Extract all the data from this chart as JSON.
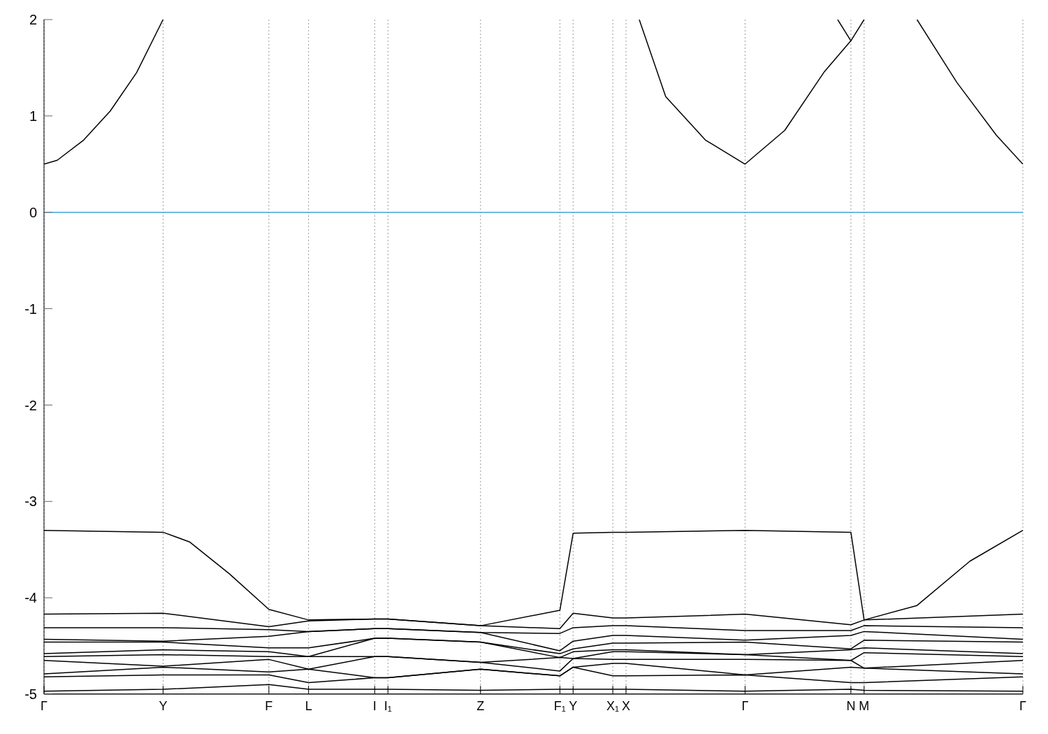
{
  "chart_data": {
    "type": "line",
    "ylim": [
      -5,
      2
    ],
    "categories": [
      "Γ",
      null,
      null,
      null,
      null,
      null,
      null,
      null,
      null,
      "Y",
      null,
      null,
      null,
      null,
      null,
      null,
      null,
      "F",
      null,
      null,
      "L",
      null,
      null,
      null,
      null,
      "I",
      "I₁",
      null,
      null,
      null,
      null,
      null,
      null,
      "Z",
      null,
      null,
      null,
      null,
      null,
      "F₁",
      "Y",
      null,
      null,
      "X₁",
      "X",
      null,
      null,
      null,
      null,
      null,
      null,
      null,
      null,
      "Γ",
      null,
      null,
      null,
      null,
      null,
      null,
      null,
      "N",
      "M",
      null,
      null,
      null,
      null,
      null,
      null,
      null,
      null,
      null,
      null,
      null,
      "Γ"
    ],
    "yticks": [
      -5,
      -4,
      -3,
      -2,
      -1,
      0,
      1,
      2
    ],
    "grid": "x",
    "ref_lines": [
      {
        "axis": "y",
        "value": 0,
        "color": "#3fa9de"
      }
    ],
    "series": [
      {
        "color": "#000000",
        "values": [
          0.5,
          0.54,
          null,
          0.75,
          null,
          1.05,
          null,
          1.45,
          null,
          2.0,
          null,
          null,
          null,
          null,
          null,
          null,
          null,
          null,
          null,
          null,
          null,
          null,
          null,
          null,
          null,
          null,
          null,
          null,
          null,
          null,
          null,
          null,
          null,
          null,
          null,
          null,
          null,
          null,
          null,
          null,
          null,
          null,
          null,
          null,
          null,
          null,
          null,
          null,
          null,
          null,
          null,
          null,
          null,
          null,
          null,
          null,
          null,
          null,
          null,
          null,
          null,
          null,
          null,
          null,
          null,
          null,
          null,
          null,
          null,
          null,
          null,
          null,
          null,
          null,
          null
        ]
      },
      {
        "color": "#000000",
        "values": [
          null,
          null,
          null,
          null,
          null,
          null,
          null,
          null,
          null,
          null,
          null,
          null,
          null,
          null,
          null,
          null,
          null,
          null,
          null,
          null,
          null,
          null,
          null,
          null,
          null,
          null,
          null,
          null,
          null,
          null,
          null,
          null,
          null,
          null,
          null,
          null,
          null,
          null,
          null,
          null,
          null,
          null,
          null,
          null,
          null,
          2.0,
          null,
          1.2,
          null,
          null,
          0.75,
          null,
          null,
          0.5,
          null,
          null,
          0.85,
          null,
          null,
          1.46,
          null,
          1.78,
          null,
          null,
          null,
          null,
          null,
          null,
          null,
          null,
          null,
          null,
          null,
          null,
          null
        ]
      },
      {
        "color": "#000000",
        "values": [
          null,
          null,
          null,
          null,
          null,
          null,
          null,
          null,
          null,
          null,
          null,
          null,
          null,
          null,
          null,
          null,
          null,
          null,
          null,
          null,
          null,
          null,
          null,
          null,
          null,
          null,
          null,
          null,
          null,
          null,
          null,
          null,
          null,
          null,
          null,
          null,
          null,
          null,
          null,
          null,
          null,
          null,
          null,
          null,
          null,
          null,
          null,
          null,
          null,
          null,
          null,
          null,
          null,
          null,
          null,
          null,
          null,
          null,
          null,
          null,
          2.0,
          1.78,
          2.0,
          null,
          null,
          null,
          null,
          null,
          null,
          null,
          null,
          null,
          null,
          null,
          null
        ]
      },
      {
        "color": "#000000",
        "values": [
          null,
          null,
          null,
          null,
          null,
          null,
          null,
          null,
          null,
          null,
          null,
          null,
          null,
          null,
          null,
          null,
          null,
          null,
          null,
          null,
          null,
          null,
          null,
          null,
          null,
          null,
          null,
          null,
          null,
          null,
          null,
          null,
          null,
          null,
          null,
          null,
          null,
          null,
          null,
          null,
          null,
          null,
          null,
          null,
          null,
          null,
          null,
          null,
          null,
          null,
          null,
          null,
          null,
          null,
          null,
          null,
          null,
          null,
          null,
          null,
          null,
          null,
          null,
          null,
          null,
          null,
          2.0,
          null,
          null,
          1.35,
          null,
          null,
          0.8,
          null,
          0.5
        ]
      },
      {
        "color": "#000000",
        "values": [
          -3.3,
          null,
          null,
          null,
          null,
          null,
          null,
          null,
          null,
          -3.32,
          null,
          -3.42,
          null,
          null,
          -3.75,
          null,
          null,
          -4.12,
          null,
          null,
          -4.23,
          null,
          null,
          null,
          null,
          -4.22,
          -4.22,
          null,
          null,
          null,
          null,
          null,
          null,
          -4.29,
          null,
          null,
          null,
          null,
          null,
          -4.13,
          -3.33,
          null,
          null,
          -3.32,
          -3.32,
          null,
          null,
          null,
          null,
          null,
          null,
          null,
          null,
          -3.3,
          null,
          null,
          null,
          null,
          null,
          null,
          null,
          -3.32,
          -4.23,
          null,
          null,
          null,
          -4.08,
          null,
          null,
          null,
          -3.62,
          null,
          null,
          null,
          -3.3
        ]
      },
      {
        "color": "#000000",
        "values": [
          -4.17,
          null,
          null,
          null,
          null,
          null,
          null,
          null,
          null,
          -4.16,
          null,
          null,
          null,
          null,
          null,
          null,
          null,
          -4.3,
          null,
          null,
          -4.24,
          null,
          null,
          null,
          null,
          -4.22,
          -4.22,
          null,
          null,
          null,
          null,
          null,
          null,
          -4.29,
          null,
          null,
          null,
          null,
          null,
          -4.32,
          -4.16,
          null,
          null,
          -4.21,
          -4.21,
          null,
          null,
          null,
          null,
          null,
          null,
          null,
          null,
          -4.17,
          null,
          null,
          null,
          null,
          null,
          null,
          null,
          -4.28,
          -4.23,
          null,
          null,
          null,
          null,
          null,
          null,
          null,
          null,
          null,
          null,
          null,
          -4.17
        ]
      },
      {
        "color": "#000000",
        "values": [
          -4.31,
          null,
          null,
          null,
          null,
          null,
          null,
          null,
          null,
          -4.31,
          null,
          null,
          null,
          null,
          null,
          null,
          null,
          -4.33,
          null,
          null,
          -4.35,
          null,
          null,
          null,
          null,
          -4.32,
          -4.32,
          null,
          null,
          null,
          null,
          null,
          null,
          -4.36,
          null,
          null,
          null,
          null,
          null,
          -4.37,
          -4.31,
          null,
          null,
          -4.29,
          -4.29,
          null,
          null,
          null,
          null,
          null,
          null,
          null,
          null,
          -4.34,
          null,
          null,
          null,
          null,
          null,
          null,
          null,
          -4.34,
          -4.29,
          null,
          null,
          null,
          null,
          null,
          null,
          null,
          null,
          null,
          null,
          null,
          -4.31
        ]
      },
      {
        "color": "#000000",
        "values": [
          -4.43,
          null,
          null,
          null,
          null,
          null,
          null,
          null,
          null,
          -4.45,
          null,
          null,
          null,
          null,
          null,
          null,
          null,
          -4.4,
          null,
          null,
          -4.35,
          null,
          null,
          null,
          null,
          -4.32,
          -4.32,
          null,
          null,
          null,
          null,
          null,
          null,
          -4.36,
          null,
          null,
          null,
          null,
          null,
          -4.55,
          -4.45,
          null,
          null,
          -4.39,
          -4.39,
          null,
          null,
          null,
          null,
          null,
          null,
          null,
          null,
          -4.44,
          null,
          null,
          null,
          null,
          null,
          null,
          null,
          -4.39,
          -4.35,
          null,
          null,
          null,
          null,
          null,
          null,
          null,
          null,
          null,
          null,
          null,
          -4.43
        ]
      },
      {
        "color": "#000000",
        "values": [
          -4.46,
          null,
          null,
          null,
          null,
          null,
          null,
          null,
          null,
          -4.46,
          null,
          null,
          null,
          null,
          null,
          null,
          null,
          -4.52,
          null,
          null,
          -4.52,
          null,
          null,
          null,
          null,
          -4.42,
          -4.42,
          null,
          null,
          null,
          null,
          null,
          null,
          -4.46,
          null,
          null,
          null,
          null,
          null,
          -4.58,
          -4.53,
          null,
          null,
          -4.47,
          -4.47,
          null,
          null,
          null,
          null,
          null,
          null,
          null,
          null,
          -4.46,
          null,
          null,
          null,
          null,
          null,
          null,
          null,
          -4.53,
          -4.44,
          null,
          null,
          null,
          null,
          null,
          null,
          null,
          null,
          null,
          null,
          null,
          -4.46
        ]
      },
      {
        "color": "#000000",
        "values": [
          -4.58,
          null,
          null,
          null,
          null,
          null,
          null,
          null,
          null,
          -4.54,
          null,
          null,
          null,
          null,
          null,
          null,
          null,
          -4.56,
          null,
          null,
          -4.61,
          null,
          null,
          null,
          null,
          -4.42,
          -4.42,
          null,
          null,
          null,
          null,
          null,
          null,
          -4.46,
          null,
          null,
          null,
          null,
          null,
          -4.62,
          -4.56,
          null,
          null,
          -4.54,
          -4.54,
          null,
          null,
          null,
          null,
          null,
          null,
          null,
          null,
          -4.59,
          null,
          null,
          null,
          null,
          null,
          null,
          null,
          -4.54,
          -4.52,
          null,
          null,
          null,
          null,
          null,
          null,
          null,
          null,
          null,
          null,
          null,
          -4.58
        ]
      },
      {
        "color": "#000000",
        "values": [
          -4.61,
          null,
          null,
          null,
          null,
          null,
          null,
          null,
          null,
          -4.59,
          null,
          null,
          null,
          null,
          null,
          null,
          null,
          -4.61,
          null,
          null,
          -4.61,
          null,
          null,
          null,
          null,
          -4.61,
          -4.61,
          null,
          null,
          null,
          null,
          null,
          null,
          -4.67,
          null,
          null,
          null,
          null,
          null,
          -4.62,
          -4.63,
          null,
          null,
          -4.56,
          -4.56,
          null,
          null,
          null,
          null,
          null,
          null,
          null,
          null,
          -4.59,
          null,
          null,
          null,
          null,
          null,
          null,
          null,
          -4.65,
          -4.57,
          null,
          null,
          null,
          null,
          null,
          null,
          null,
          null,
          null,
          null,
          null,
          -4.61
        ]
      },
      {
        "color": "#000000",
        "values": [
          -4.65,
          null,
          null,
          null,
          null,
          null,
          null,
          null,
          null,
          -4.71,
          null,
          null,
          null,
          null,
          null,
          null,
          null,
          -4.64,
          null,
          null,
          -4.74,
          null,
          null,
          null,
          null,
          -4.61,
          -4.61,
          null,
          null,
          null,
          null,
          null,
          null,
          -4.67,
          null,
          null,
          null,
          null,
          null,
          -4.76,
          -4.63,
          null,
          null,
          -4.64,
          -4.64,
          null,
          null,
          null,
          null,
          null,
          null,
          null,
          null,
          -4.64,
          null,
          null,
          null,
          null,
          null,
          null,
          null,
          -4.65,
          -4.73,
          null,
          null,
          null,
          null,
          null,
          null,
          null,
          null,
          null,
          null,
          null,
          -4.65
        ]
      },
      {
        "color": "#000000",
        "values": [
          -4.79,
          null,
          null,
          null,
          null,
          null,
          null,
          null,
          null,
          -4.72,
          null,
          null,
          null,
          null,
          null,
          null,
          null,
          -4.77,
          null,
          null,
          -4.74,
          null,
          null,
          null,
          null,
          -4.83,
          -4.83,
          null,
          null,
          null,
          null,
          null,
          null,
          -4.74,
          null,
          null,
          null,
          null,
          null,
          -4.81,
          -4.72,
          null,
          null,
          -4.68,
          -4.68,
          null,
          null,
          null,
          null,
          null,
          null,
          null,
          null,
          -4.8,
          null,
          null,
          null,
          null,
          null,
          null,
          null,
          -4.72,
          -4.73,
          null,
          null,
          null,
          null,
          null,
          null,
          null,
          null,
          null,
          null,
          null,
          -4.79
        ]
      },
      {
        "color": "#000000",
        "values": [
          -4.82,
          null,
          null,
          null,
          null,
          null,
          null,
          null,
          null,
          -4.8,
          null,
          null,
          null,
          null,
          null,
          null,
          null,
          -4.8,
          null,
          null,
          -4.88,
          null,
          null,
          null,
          null,
          -4.83,
          -4.83,
          null,
          null,
          null,
          null,
          null,
          null,
          -4.74,
          null,
          null,
          null,
          null,
          null,
          -4.81,
          -4.72,
          null,
          null,
          -4.81,
          -4.81,
          null,
          null,
          null,
          null,
          null,
          null,
          null,
          null,
          -4.8,
          null,
          null,
          null,
          null,
          null,
          null,
          null,
          -4.88,
          -4.88,
          null,
          null,
          null,
          null,
          null,
          null,
          null,
          null,
          null,
          null,
          null,
          -4.82
        ]
      },
      {
        "color": "#000000",
        "values": [
          -4.97,
          null,
          null,
          null,
          null,
          null,
          null,
          null,
          null,
          -4.95,
          null,
          null,
          null,
          null,
          null,
          null,
          null,
          -4.9,
          null,
          null,
          -4.95,
          null,
          null,
          null,
          null,
          -4.95,
          -4.95,
          null,
          null,
          null,
          null,
          null,
          null,
          -4.96,
          null,
          null,
          null,
          null,
          null,
          -4.95,
          -4.95,
          null,
          null,
          -4.95,
          -4.95,
          null,
          null,
          null,
          null,
          null,
          null,
          null,
          null,
          -4.97,
          null,
          null,
          null,
          null,
          null,
          null,
          null,
          -4.95,
          -4.96,
          null,
          null,
          null,
          null,
          null,
          null,
          null,
          null,
          null,
          null,
          null,
          -4.97
        ]
      },
      {
        "color": "#000000",
        "values": [
          -5.0,
          null,
          null,
          null,
          null,
          null,
          null,
          null,
          null,
          -5.0,
          null,
          null,
          null,
          null,
          null,
          null,
          null,
          -5.0,
          null,
          null,
          -5.0,
          null,
          null,
          null,
          null,
          -5.0,
          -5.0,
          null,
          null,
          null,
          null,
          null,
          null,
          -5.0,
          null,
          null,
          null,
          null,
          null,
          -5.0,
          -5.0,
          null,
          null,
          -5.0,
          -5.0,
          null,
          null,
          null,
          null,
          null,
          null,
          null,
          null,
          -5.0,
          null,
          null,
          null,
          null,
          null,
          null,
          null,
          -5.0,
          -5.0,
          null,
          null,
          null,
          null,
          null,
          null,
          null,
          null,
          null,
          null,
          null,
          -5.0
        ]
      }
    ]
  }
}
